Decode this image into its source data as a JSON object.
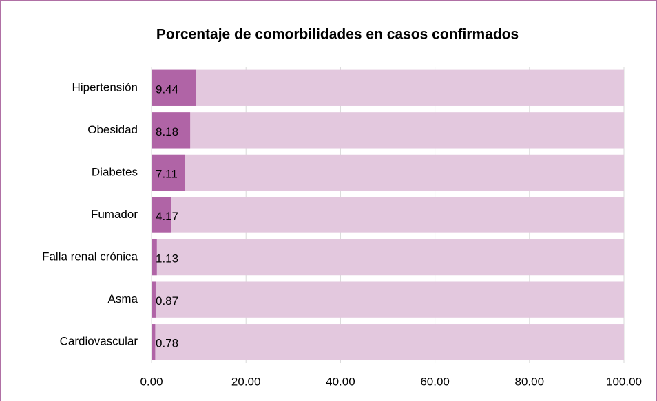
{
  "chart_data": {
    "type": "bar",
    "orientation": "horizontal",
    "title": "Porcentaje de comorbilidades en casos confirmados",
    "categories": [
      "Hipertensión",
      "Obesidad",
      "Diabetes",
      "Fumador",
      "Falla renal crónica",
      "Asma",
      "Cardiovascular"
    ],
    "values": [
      9.44,
      8.18,
      7.11,
      4.17,
      1.13,
      0.87,
      0.78
    ],
    "color": "#b064a6",
    "track_color": "#e3c8de",
    "xlim": [
      0,
      100
    ],
    "xticks": [
      {
        "value": 0,
        "label": "0.00"
      },
      {
        "value": 20,
        "label": "20.00"
      },
      {
        "value": 40,
        "label": "40.00"
      },
      {
        "value": 60,
        "label": "60.00"
      },
      {
        "value": 80,
        "label": "80.00"
      },
      {
        "value": 100,
        "label": "100.00"
      }
    ],
    "grid": true
  }
}
